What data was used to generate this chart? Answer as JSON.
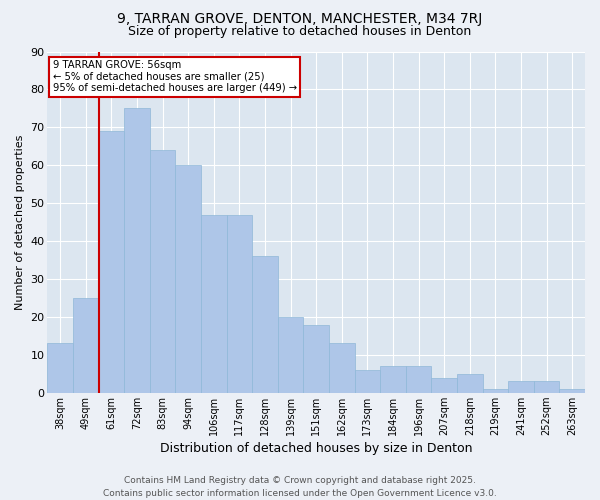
{
  "title_line1": "9, TARRAN GROVE, DENTON, MANCHESTER, M34 7RJ",
  "title_line2": "Size of property relative to detached houses in Denton",
  "xlabel": "Distribution of detached houses by size in Denton",
  "ylabel": "Number of detached properties",
  "categories": [
    "38sqm",
    "49sqm",
    "61sqm",
    "72sqm",
    "83sqm",
    "94sqm",
    "106sqm",
    "117sqm",
    "128sqm",
    "139sqm",
    "151sqm",
    "162sqm",
    "173sqm",
    "184sqm",
    "196sqm",
    "207sqm",
    "218sqm",
    "219sqm",
    "241sqm",
    "252sqm",
    "263sqm"
  ],
  "values": [
    13,
    25,
    69,
    75,
    64,
    60,
    47,
    47,
    36,
    20,
    18,
    13,
    6,
    7,
    7,
    4,
    5,
    1,
    3,
    3,
    1
  ],
  "bar_color": "#aec6e8",
  "bar_edge_color": "#8fb8d8",
  "vline_color": "#cc0000",
  "vline_index": 1.5,
  "annotation_text": "9 TARRAN GROVE: 56sqm\n← 5% of detached houses are smaller (25)\n95% of semi-detached houses are larger (449) →",
  "annotation_box_color": "#ffffff",
  "annotation_box_edge": "#cc0000",
  "footer_line1": "Contains HM Land Registry data © Crown copyright and database right 2025.",
  "footer_line2": "Contains public sector information licensed under the Open Government Licence v3.0.",
  "ylim": [
    0,
    90
  ],
  "yticks": [
    0,
    10,
    20,
    30,
    40,
    50,
    60,
    70,
    80,
    90
  ],
  "bg_color": "#ecf0f6",
  "plot_bg_color": "#dce6f0",
  "grid_color": "#ffffff",
  "title1_fontsize": 10,
  "title2_fontsize": 9,
  "xlabel_fontsize": 9,
  "ylabel_fontsize": 8,
  "tick_fontsize": 7,
  "footer_fontsize": 6.5
}
